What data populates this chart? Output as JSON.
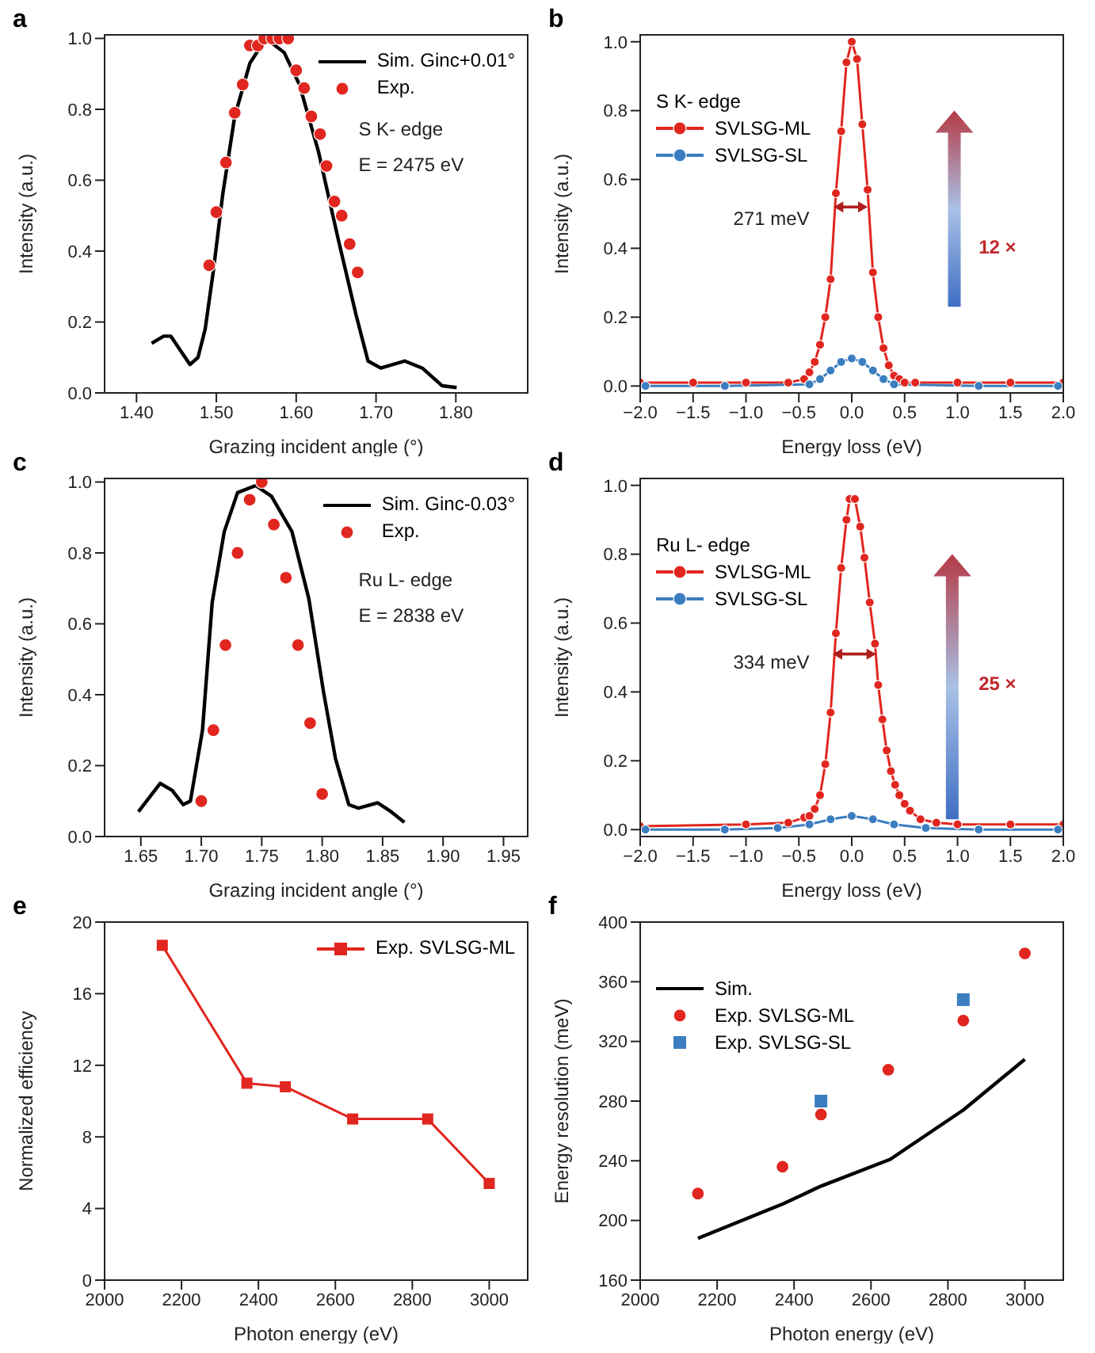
{
  "chart_data": [
    {
      "type": "scatter",
      "title": "a",
      "xlabel": "Grazing incident angle (°)",
      "ylabel": "Intensity (a.u.)",
      "legend": "top right",
      "xlim": [
        1.36,
        1.89
      ],
      "xticks": [
        {
          "value": 1.4,
          "label": "1.40"
        },
        {
          "value": 1.5,
          "label": "1.50"
        },
        {
          "value": 1.6,
          "label": "1.60"
        },
        {
          "value": 1.7,
          "label": "1.70"
        },
        {
          "value": 1.8,
          "label": "1.80"
        }
      ],
      "ylim": [
        0,
        1.01
      ],
      "yticks": [
        {
          "value": 0,
          "label": "0.0"
        },
        {
          "value": 0.2,
          "label": "0.2"
        },
        {
          "value": 0.4,
          "label": "0.4"
        },
        {
          "value": 0.6,
          "label": "0.6"
        },
        {
          "value": 0.8,
          "label": "0.8"
        },
        {
          "value": 1,
          "label": "1.0"
        }
      ],
      "annotations": [
        "S K- edge",
        "E = 2475 eV"
      ],
      "series": [
        {
          "name": "Sim. Ginc+0.01°",
          "type": "line",
          "color": "#000000",
          "x": [
            1.419,
            1.434,
            1.443,
            1.467,
            1.477,
            1.486,
            1.496,
            1.508,
            1.523,
            1.542,
            1.562,
            1.585,
            1.604,
            1.628,
            1.653,
            1.675,
            1.69,
            1.706,
            1.736,
            1.758,
            1.783,
            1.801
          ],
          "values": [
            0.14,
            0.16,
            0.16,
            0.08,
            0.1,
            0.18,
            0.34,
            0.56,
            0.78,
            0.93,
            1.0,
            0.96,
            0.87,
            0.68,
            0.43,
            0.22,
            0.09,
            0.07,
            0.09,
            0.07,
            0.02,
            0.015
          ]
        },
        {
          "name": "Exp.",
          "marker": "circle",
          "color": "#e0261f",
          "x": [
            1.491,
            1.5,
            1.512,
            1.523,
            1.533,
            1.542,
            1.552,
            1.56,
            1.57,
            1.579,
            1.59,
            1.6,
            1.61,
            1.619,
            1.63,
            1.638,
            1.648,
            1.657,
            1.667,
            1.677
          ],
          "values": [
            0.36,
            0.51,
            0.65,
            0.79,
            0.87,
            0.98,
            0.98,
            1.0,
            1.0,
            1.0,
            1.0,
            0.91,
            0.86,
            0.78,
            0.73,
            0.64,
            0.54,
            0.5,
            0.42,
            0.34
          ]
        }
      ]
    },
    {
      "type": "line",
      "title": "b",
      "xlabel": "Energy loss (eV)",
      "ylabel": "Intensity (a.u.)",
      "legend": "left",
      "legend_title": "S K- edge",
      "marker": "circle",
      "xlim": [
        -2,
        2
      ],
      "xticks": [
        {
          "value": -2,
          "label": "−2.0"
        },
        {
          "value": -1.5,
          "label": "−1.5"
        },
        {
          "value": -1,
          "label": "−1.0"
        },
        {
          "value": -0.5,
          "label": "−0.5"
        },
        {
          "value": 0,
          "label": "0.0"
        },
        {
          "value": 0.5,
          "label": "0.5"
        },
        {
          "value": 1,
          "label": "1.0"
        },
        {
          "value": 1.5,
          "label": "1.5"
        },
        {
          "value": 2,
          "label": "2.0"
        }
      ],
      "ylim": [
        -0.02,
        1.02
      ],
      "yticks": [
        {
          "value": 0,
          "label": "0.0"
        },
        {
          "value": 0.2,
          "label": "0.2"
        },
        {
          "value": 0.4,
          "label": "0.4"
        },
        {
          "value": 0.6,
          "label": "0.6"
        },
        {
          "value": 0.8,
          "label": "0.8"
        },
        {
          "value": 1,
          "label": "1.0"
        }
      ],
      "annotations": [
        "271 meV",
        "12 ×"
      ],
      "series": [
        {
          "name": "SVLSG-ML",
          "color": "#e0261f",
          "x": [
            -2,
            -1.5,
            -1,
            -0.6,
            -0.45,
            -0.4,
            -0.35,
            -0.3,
            -0.25,
            -0.2,
            -0.15,
            -0.1,
            -0.05,
            0,
            0.05,
            0.1,
            0.15,
            0.2,
            0.25,
            0.3,
            0.35,
            0.4,
            0.45,
            0.5,
            0.6,
            1,
            1.5,
            2
          ],
          "values": [
            0.01,
            0.01,
            0.01,
            0.01,
            0.02,
            0.04,
            0.07,
            0.12,
            0.2,
            0.31,
            0.56,
            0.74,
            0.94,
            1.0,
            0.95,
            0.76,
            0.57,
            0.33,
            0.2,
            0.11,
            0.06,
            0.03,
            0.02,
            0.01,
            0.01,
            0.01,
            0.01,
            0.01
          ]
        },
        {
          "name": "SVLSG-SL",
          "color": "#3b7dc0",
          "x": [
            -1.95,
            -1.2,
            -0.4,
            -0.3,
            -0.2,
            -0.1,
            0,
            0.1,
            0.2,
            0.3,
            0.4,
            1.2,
            1.95
          ],
          "values": [
            0,
            0,
            0.005,
            0.02,
            0.045,
            0.07,
            0.08,
            0.07,
            0.045,
            0.02,
            0.005,
            0,
            0
          ]
        }
      ]
    },
    {
      "type": "scatter",
      "title": "c",
      "xlabel": "Grazing incident angle (°)",
      "ylabel": "Intensity (a.u.)",
      "legend": "top right",
      "xlim": [
        1.62,
        1.97
      ],
      "xticks": [
        {
          "value": 1.65,
          "label": "1.65"
        },
        {
          "value": 1.7,
          "label": "1.70"
        },
        {
          "value": 1.75,
          "label": "1.75"
        },
        {
          "value": 1.8,
          "label": "1.80"
        },
        {
          "value": 1.85,
          "label": "1.85"
        },
        {
          "value": 1.9,
          "label": "1.90"
        },
        {
          "value": 1.95,
          "label": "1.95"
        }
      ],
      "ylim": [
        0,
        1.01
      ],
      "yticks": [
        {
          "value": 0,
          "label": "0.0"
        },
        {
          "value": 0.2,
          "label": "0.2"
        },
        {
          "value": 0.4,
          "label": "0.4"
        },
        {
          "value": 0.6,
          "label": "0.6"
        },
        {
          "value": 0.8,
          "label": "0.8"
        },
        {
          "value": 1,
          "label": "1.0"
        }
      ],
      "annotations": [
        "Ru L- edge",
        "E = 2838 eV"
      ],
      "series": [
        {
          "name": "Sim. Ginc-0.03°",
          "type": "line",
          "color": "#000000",
          "x": [
            1.648,
            1.666,
            1.676,
            1.685,
            1.691,
            1.701,
            1.709,
            1.719,
            1.73,
            1.745,
            1.758,
            1.775,
            1.789,
            1.801,
            1.811,
            1.822,
            1.83,
            1.846,
            1.857,
            1.868
          ],
          "values": [
            0.07,
            0.15,
            0.13,
            0.09,
            0.1,
            0.3,
            0.66,
            0.86,
            0.97,
            0.99,
            0.96,
            0.86,
            0.67,
            0.41,
            0.22,
            0.09,
            0.08,
            0.095,
            0.07,
            0.04
          ]
        },
        {
          "name": "Exp.",
          "marker": "circle",
          "color": "#e0261f",
          "x": [
            1.7,
            1.71,
            1.72,
            1.73,
            1.74,
            1.75,
            1.76,
            1.77,
            1.78,
            1.79,
            1.8
          ],
          "values": [
            0.1,
            0.3,
            0.54,
            0.8,
            0.95,
            1.0,
            0.88,
            0.73,
            0.54,
            0.32,
            0.12
          ]
        }
      ]
    },
    {
      "type": "line",
      "title": "d",
      "xlabel": "Energy loss (eV)",
      "ylabel": "Intensity (a.u.)",
      "legend": "left",
      "legend_title": "Ru L- edge",
      "marker": "circle",
      "xlim": [
        -2,
        2
      ],
      "xticks": [
        {
          "value": -2,
          "label": "−2.0"
        },
        {
          "value": -1.5,
          "label": "−1.5"
        },
        {
          "value": -1,
          "label": "−1.0"
        },
        {
          "value": -0.5,
          "label": "−0.5"
        },
        {
          "value": 0,
          "label": "0.0"
        },
        {
          "value": 0.5,
          "label": "0.5"
        },
        {
          "value": 1,
          "label": "1.0"
        },
        {
          "value": 1.5,
          "label": "1.5"
        },
        {
          "value": 2,
          "label": "2.0"
        }
      ],
      "ylim": [
        -0.02,
        1.02
      ],
      "yticks": [
        {
          "value": 0,
          "label": "0.0"
        },
        {
          "value": 0.2,
          "label": "0.2"
        },
        {
          "value": 0.4,
          "label": "0.4"
        },
        {
          "value": 0.6,
          "label": "0.6"
        },
        {
          "value": 0.8,
          "label": "0.8"
        },
        {
          "value": 1,
          "label": "1.0"
        }
      ],
      "annotations": [
        "334 meV",
        "25 ×"
      ],
      "series": [
        {
          "name": "SVLSG-ML",
          "color": "#e0261f",
          "x": [
            -2,
            -1,
            -0.6,
            -0.45,
            -0.4,
            -0.35,
            -0.3,
            -0.25,
            -0.2,
            -0.15,
            -0.1,
            -0.05,
            -0.02,
            0.03,
            0.08,
            0.12,
            0.17,
            0.22,
            0.25,
            0.29,
            0.33,
            0.37,
            0.41,
            0.45,
            0.5,
            0.55,
            0.65,
            0.8,
            1,
            1.5,
            2
          ],
          "values": [
            0.01,
            0.015,
            0.02,
            0.035,
            0.04,
            0.06,
            0.1,
            0.19,
            0.34,
            0.57,
            0.76,
            0.9,
            0.96,
            0.96,
            0.88,
            0.79,
            0.66,
            0.54,
            0.42,
            0.32,
            0.23,
            0.17,
            0.13,
            0.1,
            0.075,
            0.055,
            0.03,
            0.02,
            0.015,
            0.015,
            0.015
          ]
        },
        {
          "name": "SVLSG-SL",
          "color": "#3b7dc0",
          "x": [
            -1.95,
            -1.2,
            -0.7,
            -0.4,
            -0.2,
            0,
            0.2,
            0.4,
            0.7,
            1.2,
            1.95
          ],
          "values": [
            0,
            0,
            0.005,
            0.015,
            0.03,
            0.04,
            0.03,
            0.015,
            0.005,
            0,
            0
          ]
        }
      ]
    },
    {
      "type": "line",
      "title": "e",
      "xlabel": "Photon energy (eV)",
      "ylabel": "Normalized efficiency",
      "legend": "top right",
      "marker": "square",
      "xlim": [
        2000,
        3100
      ],
      "xticks": [
        2000,
        2200,
        2400,
        2600,
        2800,
        3000
      ],
      "ylim": [
        0,
        20
      ],
      "yticks": [
        0,
        4,
        8,
        12,
        16,
        20
      ],
      "x": [
        2150,
        2370,
        2470,
        2645,
        2840,
        3000
      ],
      "series": [
        {
          "name": "Exp. SVLSG-ML",
          "color": "#e0261f",
          "values": [
            18.7,
            11.0,
            10.8,
            9.0,
            9.0,
            5.4
          ]
        }
      ]
    },
    {
      "type": "scatter",
      "title": "f",
      "xlabel": "Photon energy (eV)",
      "ylabel": "Energy resolution (meV)",
      "legend": "left",
      "xlim": [
        2000,
        3100
      ],
      "xticks": [
        2000,
        2200,
        2400,
        2600,
        2800,
        3000
      ],
      "ylim": [
        160,
        400
      ],
      "yticks": [
        160,
        200,
        240,
        280,
        320,
        360,
        400
      ],
      "series": [
        {
          "name": "Sim.",
          "type": "line",
          "color": "#000000",
          "x": [
            2150,
            2370,
            2470,
            2650,
            2840,
            3000
          ],
          "values": [
            188,
            211,
            223,
            241,
            274,
            308
          ]
        },
        {
          "name": "Exp. SVLSG-ML",
          "marker": "circle",
          "color": "#e0261f",
          "x": [
            2150,
            2370,
            2470,
            2645,
            2840,
            3000
          ],
          "values": [
            218,
            236,
            271,
            301,
            334,
            379
          ]
        },
        {
          "name": "Exp. SVLSG-SL",
          "marker": "square",
          "color": "#3b7dc0",
          "x": [
            2470,
            2840
          ],
          "values": [
            280,
            348
          ]
        }
      ]
    }
  ]
}
